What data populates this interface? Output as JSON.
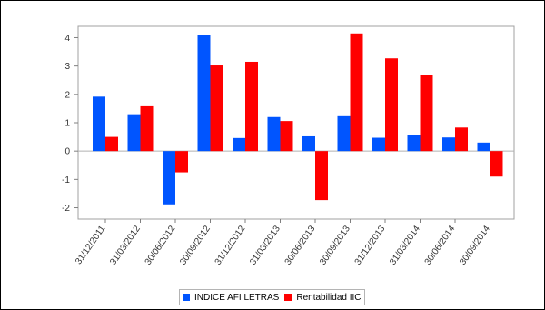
{
  "chart_data": {
    "type": "bar",
    "categories": [
      "31/12/2011",
      "31/03/2012",
      "30/06/2012",
      "30/09/2012",
      "31/12/2012",
      "31/03/2013",
      "30/06/2013",
      "30/09/2013",
      "31/12/2013",
      "31/03/2014",
      "30/06/2014",
      "30/09/2014"
    ],
    "series": [
      {
        "name": "INDICE AFI LETRAS",
        "color": "#0055ff",
        "values": [
          1.92,
          1.3,
          -1.88,
          4.08,
          0.46,
          1.2,
          0.52,
          1.23,
          0.47,
          0.57,
          0.48,
          0.3
        ]
      },
      {
        "name": "Rentabilidad IIC",
        "color": "#ff0000",
        "values": [
          0.5,
          1.58,
          -0.75,
          3.02,
          3.15,
          1.06,
          -1.73,
          4.15,
          3.27,
          2.68,
          0.83,
          -0.9
        ]
      }
    ],
    "y_ticks": [
      "-2",
      "-1",
      "0",
      "1",
      "2",
      "3",
      "4"
    ],
    "ylim": [
      -2.4,
      4.4
    ],
    "grid": false,
    "legend_position": "bottom-center",
    "title": "",
    "xlabel": "",
    "ylabel": ""
  }
}
